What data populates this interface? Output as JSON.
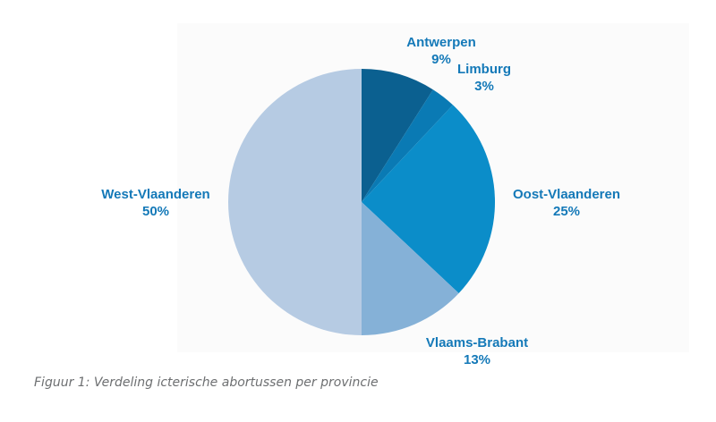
{
  "chart_data": {
    "type": "pie",
    "labels": [
      "Antwerpen",
      "Limburg",
      "Oost-Vlaanderen",
      "Vlaams-Brabant",
      "West-Vlaanderen"
    ],
    "values": [
      9,
      3,
      25,
      13,
      50
    ],
    "value_labels": [
      "9%",
      "3%",
      "25%",
      "13%",
      "50%"
    ],
    "colors": [
      "#0b6090",
      "#0a7ab4",
      "#0b8dc9",
      "#85b1d7",
      "#b6cbe3"
    ],
    "label_color": "#1479b8",
    "start": "12 o'clock",
    "direction": "clockwise"
  },
  "caption": "Figuur 1: Verdeling icterische abortussen per provincie"
}
